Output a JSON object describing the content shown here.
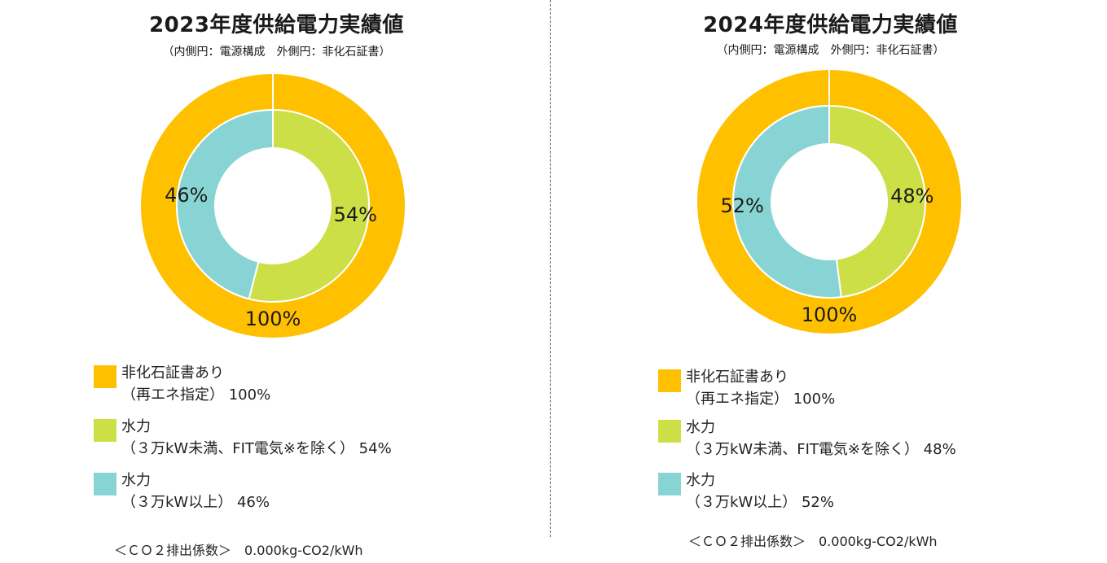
{
  "colors": {
    "non_fossil": "#FFC000",
    "hydro_small": "#CDDF46",
    "hydro_large": "#88D4D4"
  },
  "panels": [
    {
      "title": "2023年度供給電力実績値",
      "subtitle": "（内側円：電源構成　外側円：非化石証書）",
      "legend": [
        {
          "line1": "非化石証書あり",
          "line2": "（再エネ指定） 100%"
        },
        {
          "line1": "水力",
          "line2": "（３万kW未満、FIT電気※を除く） 54%"
        },
        {
          "line1": "水力",
          "line2": "（３万kW以上） 46%"
        }
      ],
      "footnote": "＜ＣＯ２排出係数＞　0.000kg-CO2/kWh"
    },
    {
      "title": "2024年度供給電力実績値",
      "subtitle": "（内側円：電源構成　外側円：非化石証書）",
      "legend": [
        {
          "line1": "非化石証書あり",
          "line2": "（再エネ指定） 100%"
        },
        {
          "line1": "水力",
          "line2": "（３万kW未満、FIT電気※を除く） 48%"
        },
        {
          "line1": "水力",
          "line2": "（３万kW以上） 52%"
        }
      ],
      "footnote": "＜ＣＯ２排出係数＞　0.000kg-CO2/kWh"
    }
  ],
  "chart_data": [
    {
      "type": "pie",
      "title": "2023年度供給電力実績値",
      "subtitle": "（内側円：電源構成　外側円：非化石証書）",
      "outer_ring": [
        {
          "name": "非化石証書あり",
          "value": 100,
          "label": "100%"
        }
      ],
      "inner_ring": [
        {
          "name": "水力（３万kW未満、FIT電気※を除く）",
          "value": 54,
          "label": "54%"
        },
        {
          "name": "水力（３万kW以上）",
          "value": 46,
          "label": "46%"
        }
      ]
    },
    {
      "type": "pie",
      "title": "2024年度供給電力実績値",
      "subtitle": "（内側円：電源構成　外側円：非化石証書）",
      "outer_ring": [
        {
          "name": "非化石証書あり",
          "value": 100,
          "label": "100%"
        }
      ],
      "inner_ring": [
        {
          "name": "水力（３万kW未満、FIT電気※を除く）",
          "value": 48,
          "label": "48%"
        },
        {
          "name": "水力（３万kW以上）",
          "value": 52,
          "label": "52%"
        }
      ]
    }
  ]
}
